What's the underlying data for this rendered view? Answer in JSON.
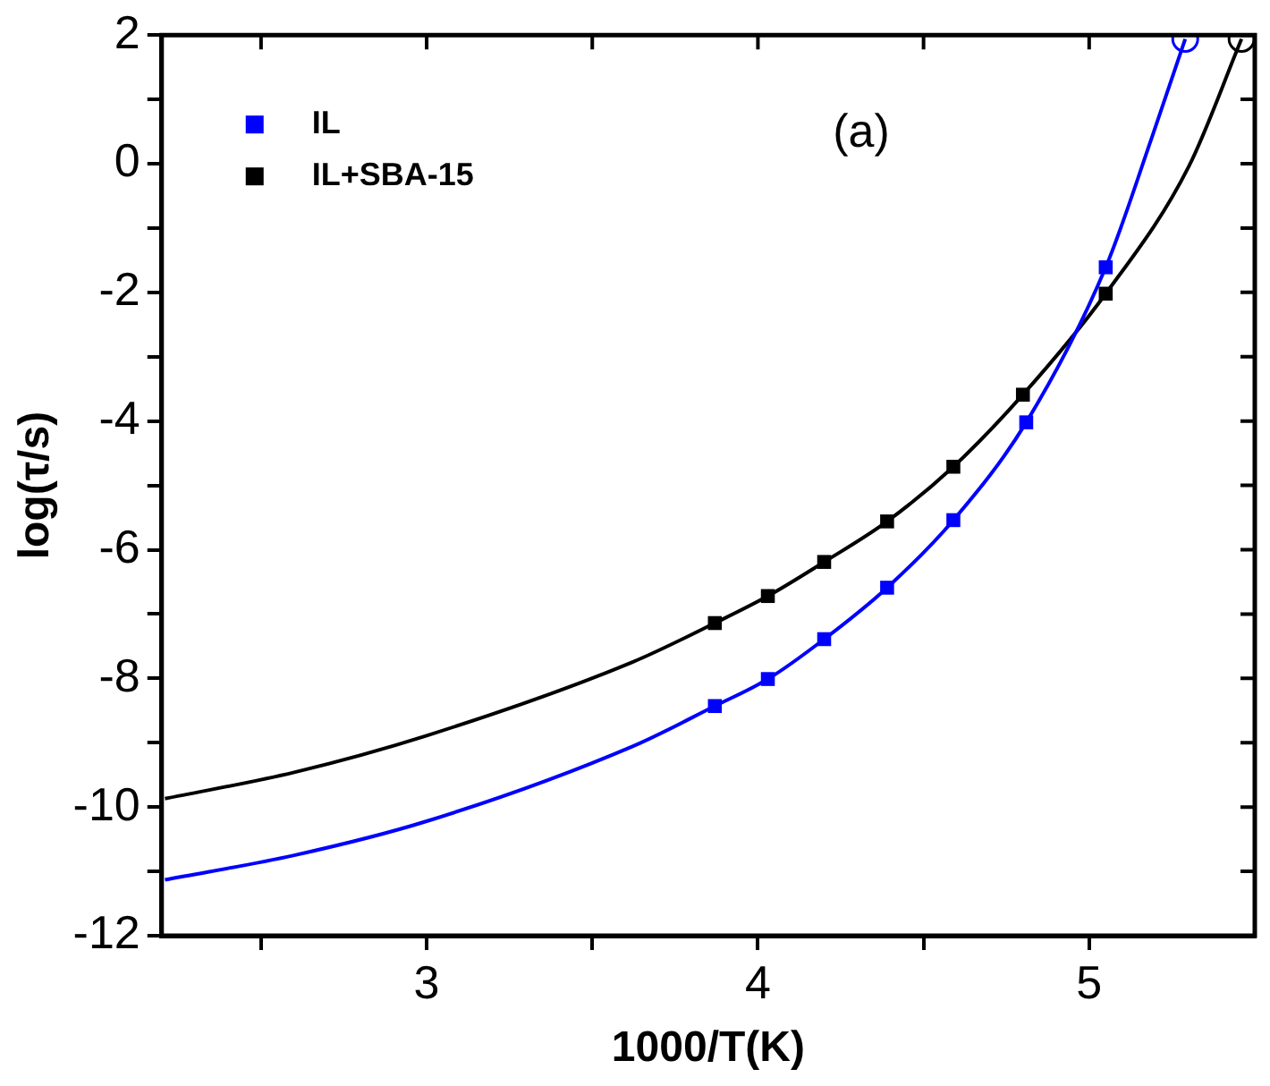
{
  "chart_data": {
    "type": "scatter",
    "xlabel": "1000/T(K)",
    "ylabel": "log(τ/s)",
    "annotations": [
      "(a)"
    ],
    "xlim": [
      2.2,
      5.5
    ],
    "xticks": [
      {
        "value": 2.5,
        "label": null
      },
      3,
      {
        "value": 3.5,
        "label": null
      },
      4,
      {
        "value": 4.5,
        "label": null
      },
      5
    ],
    "ylim": [
      -12,
      2
    ],
    "yticks": [
      -12,
      {
        "value": -11,
        "label": null
      },
      -10,
      {
        "value": -9,
        "label": null
      },
      -8,
      {
        "value": -7,
        "label": null
      },
      -6,
      {
        "value": -5,
        "label": null
      },
      -4,
      {
        "value": -3,
        "label": null
      },
      -2,
      {
        "value": -1,
        "label": null
      },
      0,
      {
        "value": 1,
        "label": null
      },
      2
    ],
    "grid": false,
    "legend": "top left",
    "marker": "square",
    "series": [
      {
        "name": "IL",
        "color": "#0000ff",
        "x": [
          3.87,
          4.03,
          4.2,
          4.39,
          4.59,
          4.81,
          5.05
        ],
        "values": [
          -8.43,
          -8.01,
          -7.39,
          -6.59,
          -5.54,
          -4.02,
          -1.61
        ]
      },
      {
        "name": "IL+SBA-15",
        "color": "#000000",
        "x": [
          3.87,
          4.03,
          4.2,
          4.39,
          4.59,
          4.8,
          5.05
        ],
        "values": [
          -7.14,
          -6.72,
          -6.19,
          -5.56,
          -4.71,
          -3.59,
          -2.02
        ]
      },
      {
        "type": "line",
        "marker": "none",
        "color": "#0000ff",
        "x": [
          2.21,
          2.6,
          3.0,
          3.62,
          3.87,
          4.03,
          4.2,
          4.39,
          4.59,
          4.81,
          5.05,
          5.19,
          5.29
        ],
        "values": [
          -11.13,
          -10.75,
          -10.22,
          -9.06,
          -8.43,
          -8.01,
          -7.39,
          -6.59,
          -5.54,
          -4.02,
          -1.61,
          0.42,
          1.94
        ]
      },
      {
        "type": "line",
        "marker": "none",
        "color": "#000000",
        "x": [
          2.21,
          2.6,
          3.0,
          3.62,
          3.87,
          4.03,
          4.2,
          4.39,
          4.59,
          4.8,
          5.05,
          5.3,
          5.46
        ],
        "values": [
          -9.87,
          -9.46,
          -8.89,
          -7.75,
          -7.14,
          -6.72,
          -6.19,
          -5.56,
          -4.71,
          -3.59,
          -2.02,
          -0.05,
          1.94
        ]
      },
      {
        "marker": "circle",
        "color": "#0000ff",
        "x": [
          5.29
        ],
        "values": [
          1.94
        ]
      },
      {
        "marker": "circle",
        "color": "#000000",
        "x": [
          5.46
        ],
        "values": [
          1.94
        ]
      }
    ]
  }
}
